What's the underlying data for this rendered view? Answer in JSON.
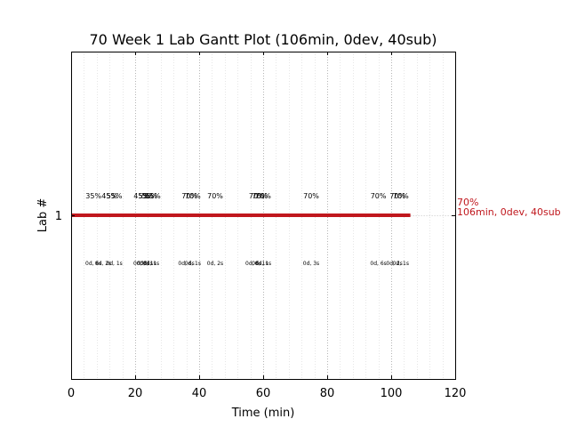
{
  "chart_data": {
    "type": "gantt",
    "title": "70 Week 1 Lab Gantt Plot (106min, 0dev, 40sub)",
    "xlabel": "Time (min)",
    "ylabel": "Lab #",
    "xlim": [
      0,
      120
    ],
    "xticks": [
      0,
      20,
      40,
      60,
      80,
      100,
      120
    ],
    "xtick_labels": [
      "0",
      "20",
      "40",
      "60",
      "80",
      "100",
      "120"
    ],
    "y_categories": [
      "1"
    ],
    "grid": "x-dotted",
    "colors": {
      "bar": "#c0171d",
      "end_label": "#c0171d",
      "major_grid": "#b5b5b5",
      "minor_grid": "#e6e6e6"
    },
    "bars": [
      {
        "lab": "1",
        "start": 0,
        "end": 106,
        "end_label_line1": "70%",
        "end_label_line2": "106min, 0dev, 40sub"
      }
    ],
    "percent_markers": [
      {
        "x": 7,
        "text": "35%"
      },
      {
        "x": 12,
        "text": "45%"
      },
      {
        "x": 13.5,
        "text": "55%"
      },
      {
        "x": 22,
        "text": "45%"
      },
      {
        "x": 23.5,
        "text": "55%"
      },
      {
        "x": 24.5,
        "text": "55%"
      },
      {
        "x": 25.5,
        "text": "55%"
      },
      {
        "x": 37,
        "text": "70%"
      },
      {
        "x": 38,
        "text": "70%"
      },
      {
        "x": 45,
        "text": "70%"
      },
      {
        "x": 58,
        "text": "70%"
      },
      {
        "x": 59,
        "text": "70%"
      },
      {
        "x": 60,
        "text": "70%"
      },
      {
        "x": 75,
        "text": "70%"
      },
      {
        "x": 96,
        "text": "70%"
      },
      {
        "x": 102,
        "text": "70%"
      },
      {
        "x": 103,
        "text": "70%"
      }
    ],
    "stat_markers": [
      {
        "x": 7,
        "text": "0d, 6s"
      },
      {
        "x": 10,
        "text": "0d, 2s"
      },
      {
        "x": 13.5,
        "text": "0d, 1s"
      },
      {
        "x": 22,
        "text": "0d, 8s"
      },
      {
        "x": 23,
        "text": "0d, 1s"
      },
      {
        "x": 24,
        "text": "0d, 1s"
      },
      {
        "x": 25,
        "text": "0d, 1s"
      },
      {
        "x": 36,
        "text": "0d, 6s"
      },
      {
        "x": 38,
        "text": "0d, 1s"
      },
      {
        "x": 45,
        "text": "0d, 2s"
      },
      {
        "x": 57,
        "text": "0d, 6s"
      },
      {
        "x": 59,
        "text": "0d, 1s"
      },
      {
        "x": 60,
        "text": "0d, 1s"
      },
      {
        "x": 75,
        "text": "0d, 3s"
      },
      {
        "x": 96,
        "text": "0d, 6s"
      },
      {
        "x": 101,
        "text": "0d, 2s"
      },
      {
        "x": 103,
        "text": "0d, 1s"
      }
    ]
  }
}
